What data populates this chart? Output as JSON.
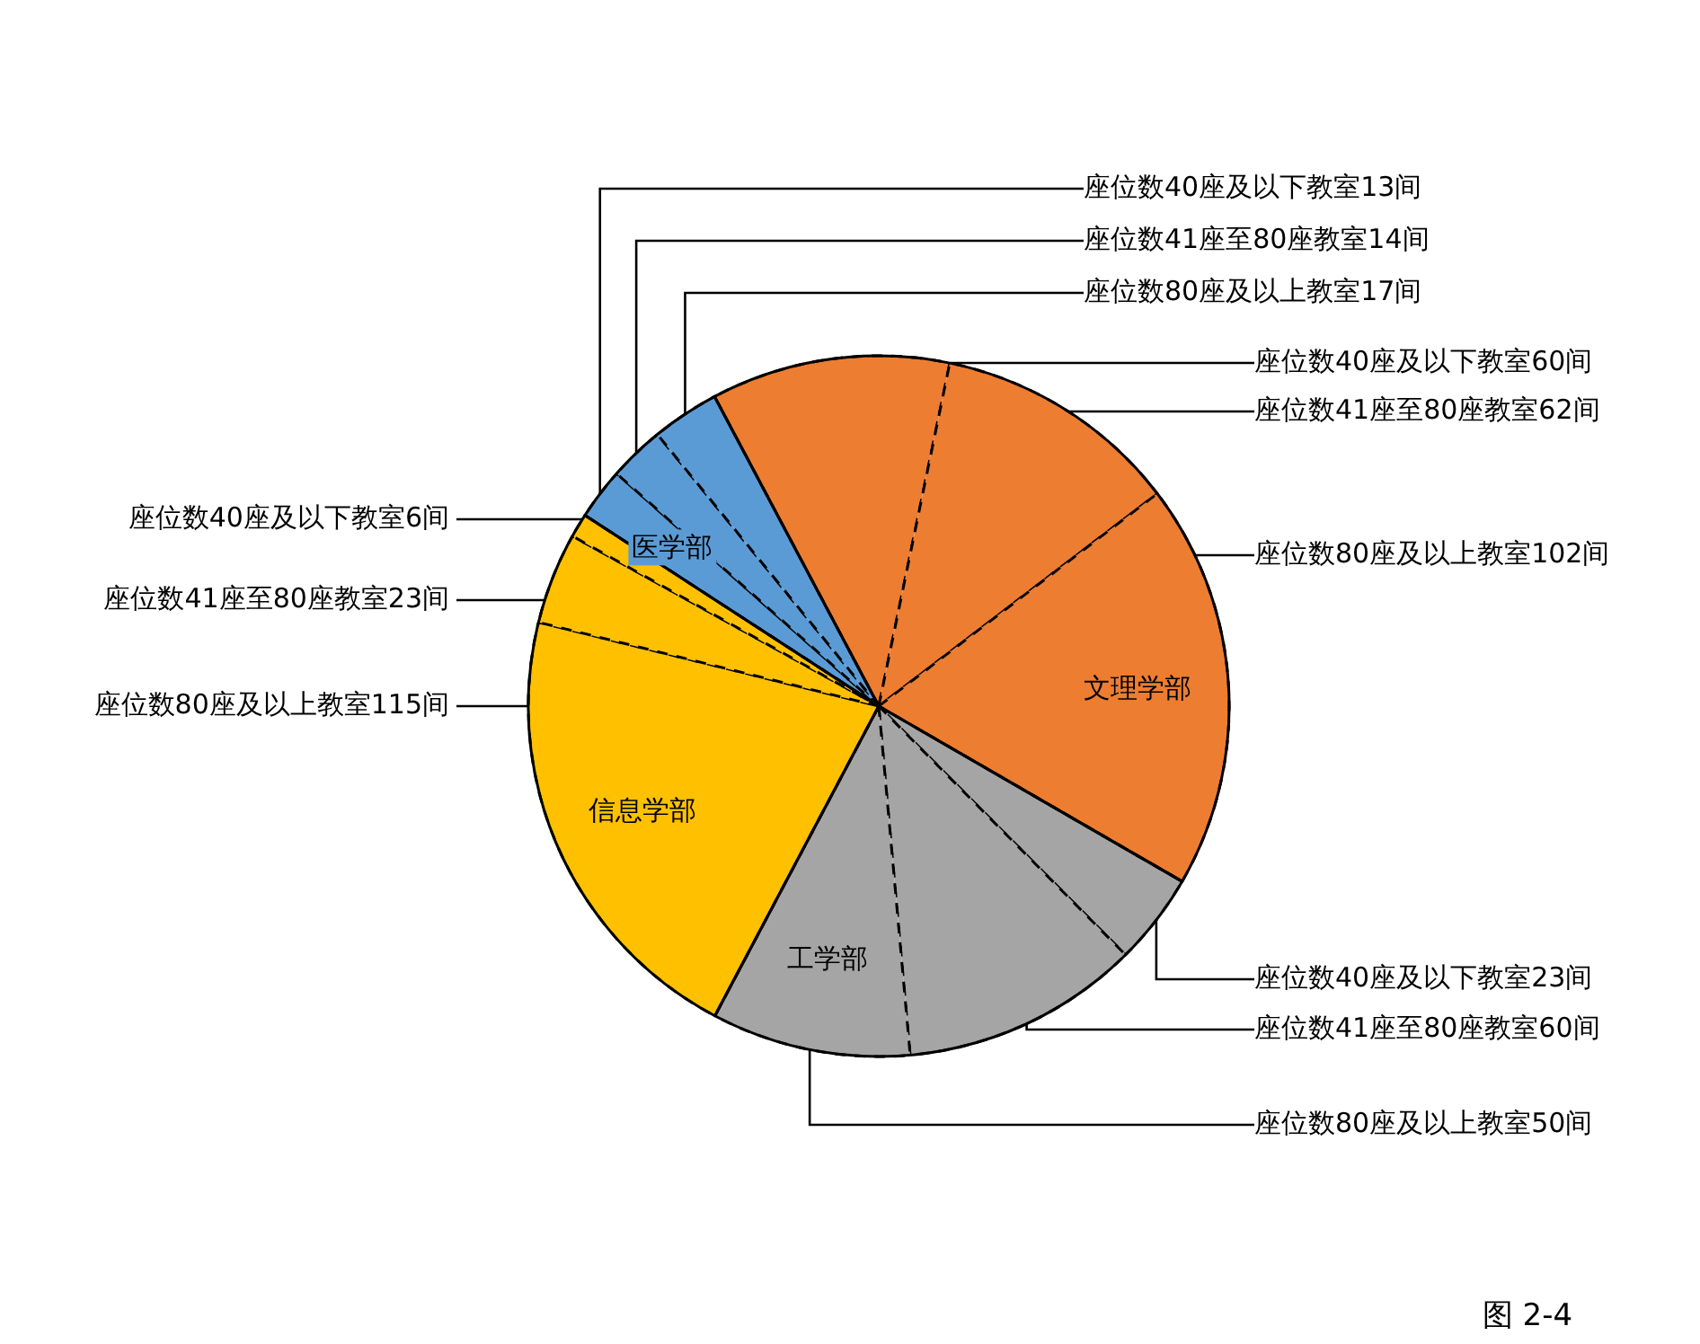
{
  "chart_data": {
    "type": "pie",
    "categories": [
      "座位数40座及以下教室13间",
      "座位数41座至80座教室14间",
      "座位数80座及以上教室17间",
      "座位数40座及以下教室60间",
      "座位数41座至80座教室62间",
      "座位数80座及以上教室102间",
      "座位数40座及以下教室23间",
      "座位数41座至80座教室60间",
      "座位数80座及以上教室50间",
      "座位数80座及以上教室115间",
      "座位数41座至80座教室23间",
      "座位数40座及以下教室6间"
    ],
    "values": [
      13,
      14,
      17,
      60,
      62,
      102,
      23,
      60,
      50,
      115,
      23,
      6
    ],
    "colors": [
      "#5b9bd5",
      "#5b9bd5",
      "#5b9bd5",
      "#ed7d31",
      "#ed7d31",
      "#ed7d31",
      "#a5a5a5",
      "#a5a5a5",
      "#a5a5a5",
      "#ffc000",
      "#ffc000",
      "#ffc000"
    ],
    "annotations": [
      {
        "text": "医学部",
        "x": "座位数40座及以下教室13间"
      },
      {
        "text": "文理学部",
        "x": "座位数80座及以上教室102间"
      },
      {
        "text": "工学部",
        "x": "座位数80座及以上教室50间"
      },
      {
        "text": "信息学部",
        "x": "座位数80座及以上教室115间"
      },
      "图 2-4"
    ]
  }
}
